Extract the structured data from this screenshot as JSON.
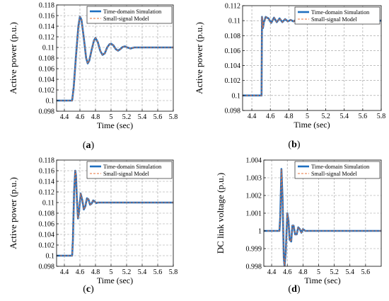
{
  "colors": {
    "sim": "#1f6fbf",
    "ssm": "#e8703a",
    "grid": "#9a9a9a",
    "axis": "#000000"
  },
  "chart_data": [
    {
      "type": "line",
      "panel": "(a)",
      "xlabel": "Time (sec)",
      "ylabel": "Active power (p.u.)",
      "xlim": [
        4.3,
        5.8
      ],
      "ylim": [
        0.098,
        0.118
      ],
      "xticks": [
        "4.4",
        "4.6",
        "4.8",
        "5",
        "5.2",
        "5.4",
        "5.6",
        "5.8"
      ],
      "xtick_values": [
        4.4,
        4.6,
        4.8,
        5.0,
        5.2,
        5.4,
        5.6,
        5.8
      ],
      "yticks": [
        "0.098",
        "0.1",
        "0.102",
        "0.104",
        "0.106",
        "0.108",
        "0.11",
        "0.112",
        "0.114",
        "0.116",
        "0.118"
      ],
      "ytick_values": [
        0.098,
        0.1,
        0.102,
        0.104,
        0.106,
        0.108,
        0.11,
        0.112,
        0.114,
        0.116,
        0.118
      ],
      "grid": true,
      "legend": "top-right",
      "series": [
        {
          "name": "Time-domain Simulation",
          "style": "solid",
          "x": [
            4.3,
            4.5,
            4.52,
            4.55,
            4.58,
            4.6,
            4.62,
            4.65,
            4.68,
            4.7,
            4.72,
            4.75,
            4.78,
            4.8,
            4.83,
            4.86,
            4.89,
            4.92,
            4.95,
            4.98,
            5.0,
            5.03,
            5.06,
            5.09,
            5.12,
            5.15,
            5.18,
            5.21,
            5.25,
            5.3,
            5.35,
            5.4,
            5.45,
            5.5,
            5.6,
            5.8
          ],
          "y": [
            0.1,
            0.1,
            0.1025,
            0.1085,
            0.114,
            0.1158,
            0.1152,
            0.1118,
            0.108,
            0.107,
            0.1075,
            0.1095,
            0.1113,
            0.1118,
            0.111,
            0.1094,
            0.1086,
            0.1089,
            0.11,
            0.1106,
            0.1107,
            0.1104,
            0.1097,
            0.1094,
            0.1097,
            0.1101,
            0.1102,
            0.11,
            0.1098,
            0.11,
            0.11,
            0.11,
            0.11,
            0.11,
            0.11,
            0.11
          ]
        },
        {
          "name": "Small-signal Model",
          "style": "dashed",
          "x": [
            4.3,
            4.5,
            4.52,
            4.55,
            4.58,
            4.6,
            4.62,
            4.65,
            4.68,
            4.7,
            4.72,
            4.75,
            4.78,
            4.8,
            4.83,
            4.86,
            4.89,
            4.92,
            4.95,
            4.98,
            5.0,
            5.03,
            5.06,
            5.09,
            5.12,
            5.15,
            5.18,
            5.21,
            5.25,
            5.3,
            5.35,
            5.4,
            5.45,
            5.5,
            5.6,
            5.8
          ],
          "y": [
            0.1,
            0.1,
            0.1025,
            0.1085,
            0.114,
            0.1158,
            0.1152,
            0.1118,
            0.108,
            0.107,
            0.1075,
            0.1095,
            0.1113,
            0.1118,
            0.111,
            0.1094,
            0.1086,
            0.1089,
            0.11,
            0.1106,
            0.1107,
            0.1104,
            0.1097,
            0.1094,
            0.1097,
            0.1101,
            0.1102,
            0.11,
            0.1098,
            0.11,
            0.11,
            0.11,
            0.11,
            0.11,
            0.11,
            0.11
          ]
        }
      ]
    },
    {
      "type": "line",
      "panel": "(b)",
      "xlabel": "Time (sec)",
      "ylabel": "Active power (p.u.)",
      "xlim": [
        4.3,
        5.8
      ],
      "ylim": [
        0.098,
        0.112
      ],
      "xticks": [
        "4.4",
        "4.6",
        "4.8",
        "5",
        "5.2",
        "5.4",
        "5.6",
        "5.8"
      ],
      "xtick_values": [
        4.4,
        4.6,
        4.8,
        5.0,
        5.2,
        5.4,
        5.6,
        5.8
      ],
      "yticks": [
        "0.098",
        "0.1",
        "0.102",
        "0.104",
        "0.106",
        "0.108",
        "0.11",
        "0.112"
      ],
      "ytick_values": [
        0.098,
        0.1,
        0.102,
        0.104,
        0.106,
        0.108,
        0.11,
        0.112
      ],
      "grid": true,
      "legend": "top-right",
      "series": [
        {
          "name": "Time-domain Simulation",
          "style": "solid",
          "x": [
            4.3,
            4.5,
            4.505,
            4.51,
            4.52,
            4.53,
            4.55,
            4.58,
            4.61,
            4.64,
            4.67,
            4.7,
            4.73,
            4.76,
            4.79,
            4.82,
            4.85,
            4.88,
            4.91,
            4.94,
            4.97,
            5.0,
            5.05,
            5.1,
            5.2,
            5.4,
            5.8
          ],
          "y": [
            0.1,
            0.1,
            0.1,
            0.1105,
            0.109,
            0.1098,
            0.1105,
            0.1103,
            0.1097,
            0.1104,
            0.1098,
            0.1103,
            0.1098,
            0.1102,
            0.1099,
            0.1101,
            0.1099,
            0.1101,
            0.11,
            0.1101,
            0.11,
            0.11,
            0.11,
            0.11,
            0.11,
            0.11,
            0.11
          ]
        },
        {
          "name": "Small-signal Model",
          "style": "dashed",
          "x": [
            4.3,
            4.5,
            4.505,
            4.51,
            4.52,
            4.53,
            4.55,
            4.58,
            4.61,
            4.64,
            4.67,
            4.7,
            4.73,
            4.76,
            4.79,
            4.82,
            4.85,
            4.88,
            4.91,
            4.94,
            4.97,
            5.0,
            5.05,
            5.1,
            5.2,
            5.4,
            5.8
          ],
          "y": [
            0.1,
            0.1,
            0.1,
            0.1105,
            0.109,
            0.1098,
            0.1105,
            0.1103,
            0.1097,
            0.1104,
            0.1098,
            0.1103,
            0.1098,
            0.1102,
            0.1099,
            0.1101,
            0.1099,
            0.1101,
            0.11,
            0.1101,
            0.11,
            0.11,
            0.11,
            0.11,
            0.11,
            0.11,
            0.11
          ]
        }
      ]
    },
    {
      "type": "line",
      "panel": "(c)",
      "xlabel": "Time (sec)",
      "ylabel": "Active power (p.u.)",
      "xlim": [
        4.3,
        5.8
      ],
      "ylim": [
        0.098,
        0.118
      ],
      "xticks": [
        "4.4",
        "4.6",
        "4.8",
        "5",
        "5.2",
        "5.4",
        "5.6",
        "5.8"
      ],
      "xtick_values": [
        4.4,
        4.6,
        4.8,
        5.0,
        5.2,
        5.4,
        5.6,
        5.8
      ],
      "yticks": [
        "0.098",
        "0.1",
        "0.102",
        "0.104",
        "0.106",
        "0.108",
        "0.11",
        "0.112",
        "0.114",
        "0.116",
        "0.118"
      ],
      "ytick_values": [
        0.098,
        0.1,
        0.102,
        0.104,
        0.106,
        0.108,
        0.11,
        0.112,
        0.114,
        0.116,
        0.118
      ],
      "grid": true,
      "legend": "top-right",
      "series": [
        {
          "name": "Time-domain Simulation",
          "style": "solid",
          "x": [
            4.3,
            4.5,
            4.51,
            4.525,
            4.54,
            4.55,
            4.56,
            4.575,
            4.59,
            4.61,
            4.63,
            4.65,
            4.67,
            4.69,
            4.71,
            4.73,
            4.75,
            4.77,
            4.79,
            4.81,
            4.83,
            4.86,
            4.9,
            5.0,
            5.2,
            5.8
          ],
          "y": [
            0.1,
            0.1,
            0.103,
            0.112,
            0.116,
            0.115,
            0.111,
            0.107,
            0.1085,
            0.1117,
            0.1105,
            0.1087,
            0.1093,
            0.1108,
            0.1106,
            0.1096,
            0.1098,
            0.1104,
            0.1102,
            0.1099,
            0.11,
            0.11,
            0.11,
            0.11,
            0.11,
            0.11
          ]
        },
        {
          "name": "Small-signal Model",
          "style": "dashed",
          "x": [
            4.3,
            4.5,
            4.51,
            4.525,
            4.54,
            4.55,
            4.56,
            4.575,
            4.59,
            4.61,
            4.63,
            4.65,
            4.67,
            4.69,
            4.71,
            4.73,
            4.75,
            4.77,
            4.79,
            4.81,
            4.83,
            4.86,
            4.9,
            5.0,
            5.2,
            5.8
          ],
          "y": [
            0.1,
            0.1,
            0.103,
            0.112,
            0.116,
            0.115,
            0.111,
            0.107,
            0.1085,
            0.1117,
            0.1105,
            0.1087,
            0.1093,
            0.1108,
            0.1106,
            0.1096,
            0.1098,
            0.1104,
            0.1102,
            0.1099,
            0.11,
            0.11,
            0.11,
            0.11,
            0.11,
            0.11
          ]
        }
      ]
    },
    {
      "type": "line",
      "panel": "(d)",
      "xlabel": "Time (sec)",
      "ylabel": "DC link voltage (p.u.)",
      "xlim": [
        4.3,
        5.8
      ],
      "ylim": [
        0.998,
        1.004
      ],
      "xticks": [
        "4.4",
        "4.6",
        "4.8",
        "5",
        "5.2",
        "5.4",
        "5.6"
      ],
      "xtick_values": [
        4.4,
        4.6,
        4.8,
        5.0,
        5.2,
        5.4,
        5.6
      ],
      "yticks": [
        "0.998",
        "0.999",
        "1",
        "1.001",
        "1.002",
        "1.003",
        "1.004"
      ],
      "ytick_values": [
        0.998,
        0.999,
        1.0,
        1.001,
        1.002,
        1.003,
        1.004
      ],
      "grid": true,
      "legend": "top-right",
      "series": [
        {
          "name": "Time-domain Simulation",
          "style": "solid",
          "x": [
            4.3,
            4.5,
            4.51,
            4.525,
            4.54,
            4.555,
            4.565,
            4.58,
            4.6,
            4.615,
            4.63,
            4.65,
            4.665,
            4.68,
            4.7,
            4.72,
            4.74,
            4.76,
            4.78,
            4.8,
            4.83,
            4.87,
            4.92,
            5.0,
            5.2,
            5.8
          ],
          "y": [
            1.0,
            1.0,
            1.0008,
            1.0035,
            1.0018,
            0.9985,
            0.998,
            0.9988,
            1.001,
            1.0006,
            0.9995,
            0.9994,
            1.0003,
            1.0003,
            0.9998,
            0.9998,
            1.0002,
            1.0001,
            0.9999,
            1.0001,
            1.0,
            1.0,
            1.0,
            1.0,
            1.0,
            1.0
          ]
        },
        {
          "name": "Small-signal Model",
          "style": "dashed",
          "x": [
            4.3,
            4.5,
            4.51,
            4.525,
            4.54,
            4.555,
            4.565,
            4.58,
            4.6,
            4.615,
            4.63,
            4.65,
            4.665,
            4.68,
            4.7,
            4.72,
            4.74,
            4.76,
            4.78,
            4.8,
            4.83,
            4.87,
            4.92,
            5.0,
            5.2,
            5.8
          ],
          "y": [
            1.0,
            1.0,
            1.0008,
            1.0035,
            1.0018,
            0.9985,
            0.998,
            0.9988,
            1.001,
            1.0006,
            0.9995,
            0.9994,
            1.0003,
            1.0003,
            0.9998,
            0.9998,
            1.0002,
            1.0001,
            0.9999,
            1.0001,
            1.0,
            1.0,
            1.0,
            1.0,
            1.0,
            1.0
          ]
        }
      ]
    }
  ]
}
